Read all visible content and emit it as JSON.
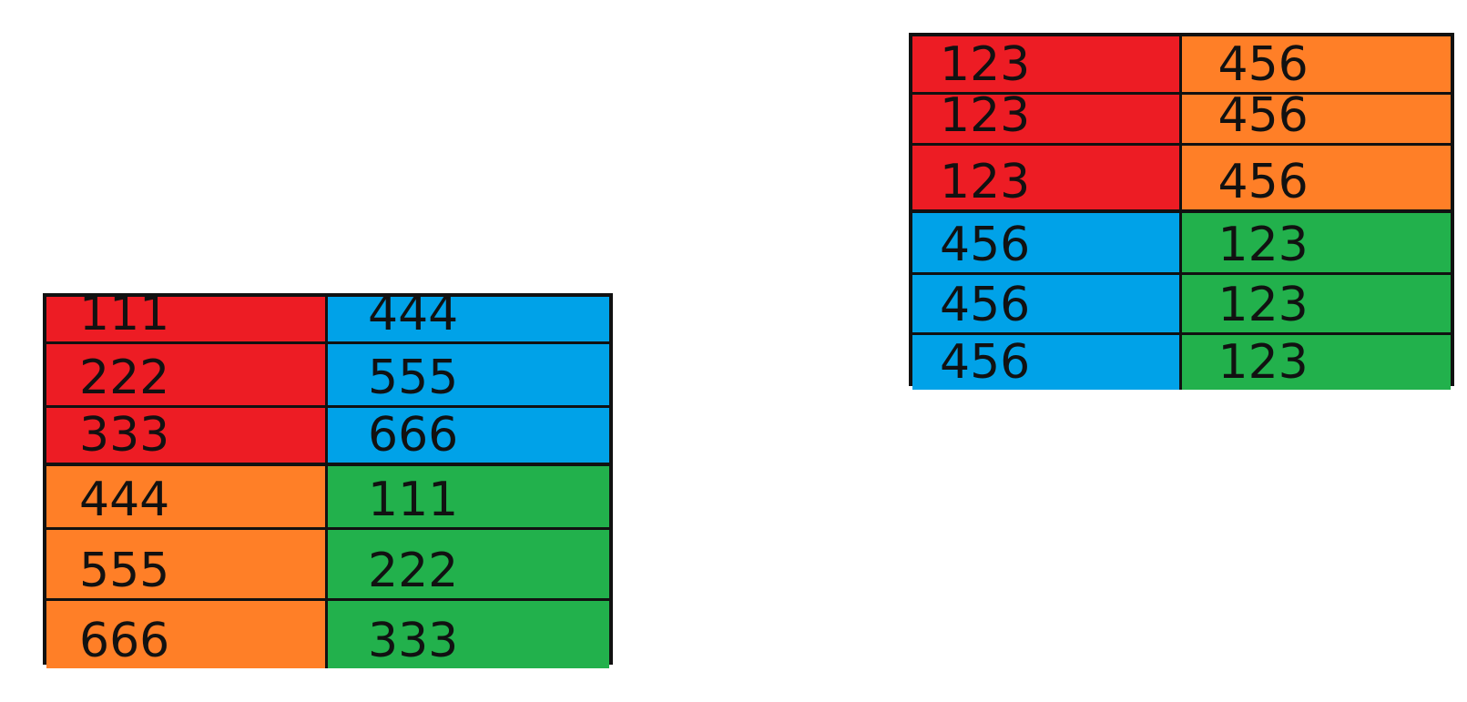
{
  "tables": [
    {
      "id": "left",
      "rows": [
        [
          {
            "text": "111",
            "color": "#ED1C24"
          },
          {
            "text": "444",
            "color": "#00A2E8"
          }
        ],
        [
          {
            "text": "222",
            "color": "#ED1C24"
          },
          {
            "text": "555",
            "color": "#00A2E8"
          }
        ],
        [
          {
            "text": "333",
            "color": "#ED1C24"
          },
          {
            "text": "666",
            "color": "#00A2E8"
          }
        ],
        [
          {
            "text": "444",
            "color": "#FF7F27"
          },
          {
            "text": "111",
            "color": "#22B14C"
          }
        ],
        [
          {
            "text": "555",
            "color": "#FF7F27"
          },
          {
            "text": "222",
            "color": "#22B14C"
          }
        ],
        [
          {
            "text": "666",
            "color": "#FF7F27"
          },
          {
            "text": "333",
            "color": "#22B14C"
          }
        ]
      ]
    },
    {
      "id": "right",
      "rows": [
        [
          {
            "text": "123",
            "color": "#ED1C24"
          },
          {
            "text": "456",
            "color": "#FF7F27"
          }
        ],
        [
          {
            "text": "123",
            "color": "#ED1C24"
          },
          {
            "text": "456",
            "color": "#FF7F27"
          }
        ],
        [
          {
            "text": "123",
            "color": "#ED1C24"
          },
          {
            "text": "456",
            "color": "#FF7F27"
          }
        ],
        [
          {
            "text": "456",
            "color": "#00A2E8"
          },
          {
            "text": "123",
            "color": "#22B14C"
          }
        ],
        [
          {
            "text": "456",
            "color": "#00A2E8"
          },
          {
            "text": "123",
            "color": "#22B14C"
          }
        ],
        [
          {
            "text": "456",
            "color": "#00A2E8"
          },
          {
            "text": "123",
            "color": "#22B14C"
          }
        ]
      ]
    }
  ]
}
